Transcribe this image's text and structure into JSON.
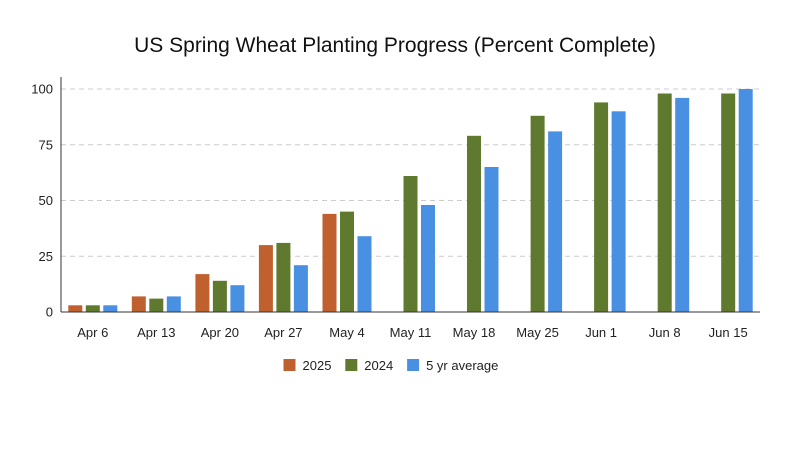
{
  "chart_data": {
    "type": "bar",
    "title": "US Spring Wheat Planting Progress (Percent Complete)",
    "xlabel": "",
    "ylabel": "",
    "ylim": [
      0,
      100
    ],
    "yticks": [
      0,
      25,
      50,
      75,
      100
    ],
    "grid": true,
    "legend_position": "bottom",
    "categories": [
      "Apr 6",
      "Apr 13",
      "Apr 20",
      "Apr 27",
      "May 4",
      "May 11",
      "May 18",
      "May 25",
      "Jun 1",
      "Jun 8",
      "Jun 15"
    ],
    "series": [
      {
        "name": "2025",
        "color": "#c0602e",
        "values": [
          3,
          7,
          17,
          30,
          44,
          null,
          null,
          null,
          null,
          null,
          null
        ]
      },
      {
        "name": "2024",
        "color": "#5f7a2e",
        "values": [
          3,
          6,
          14,
          31,
          45,
          61,
          79,
          88,
          94,
          98,
          98
        ]
      },
      {
        "name": "5 yr average",
        "color": "#4a90e2",
        "values": [
          3,
          7,
          12,
          21,
          34,
          48,
          65,
          81,
          90,
          96,
          100
        ]
      }
    ]
  }
}
